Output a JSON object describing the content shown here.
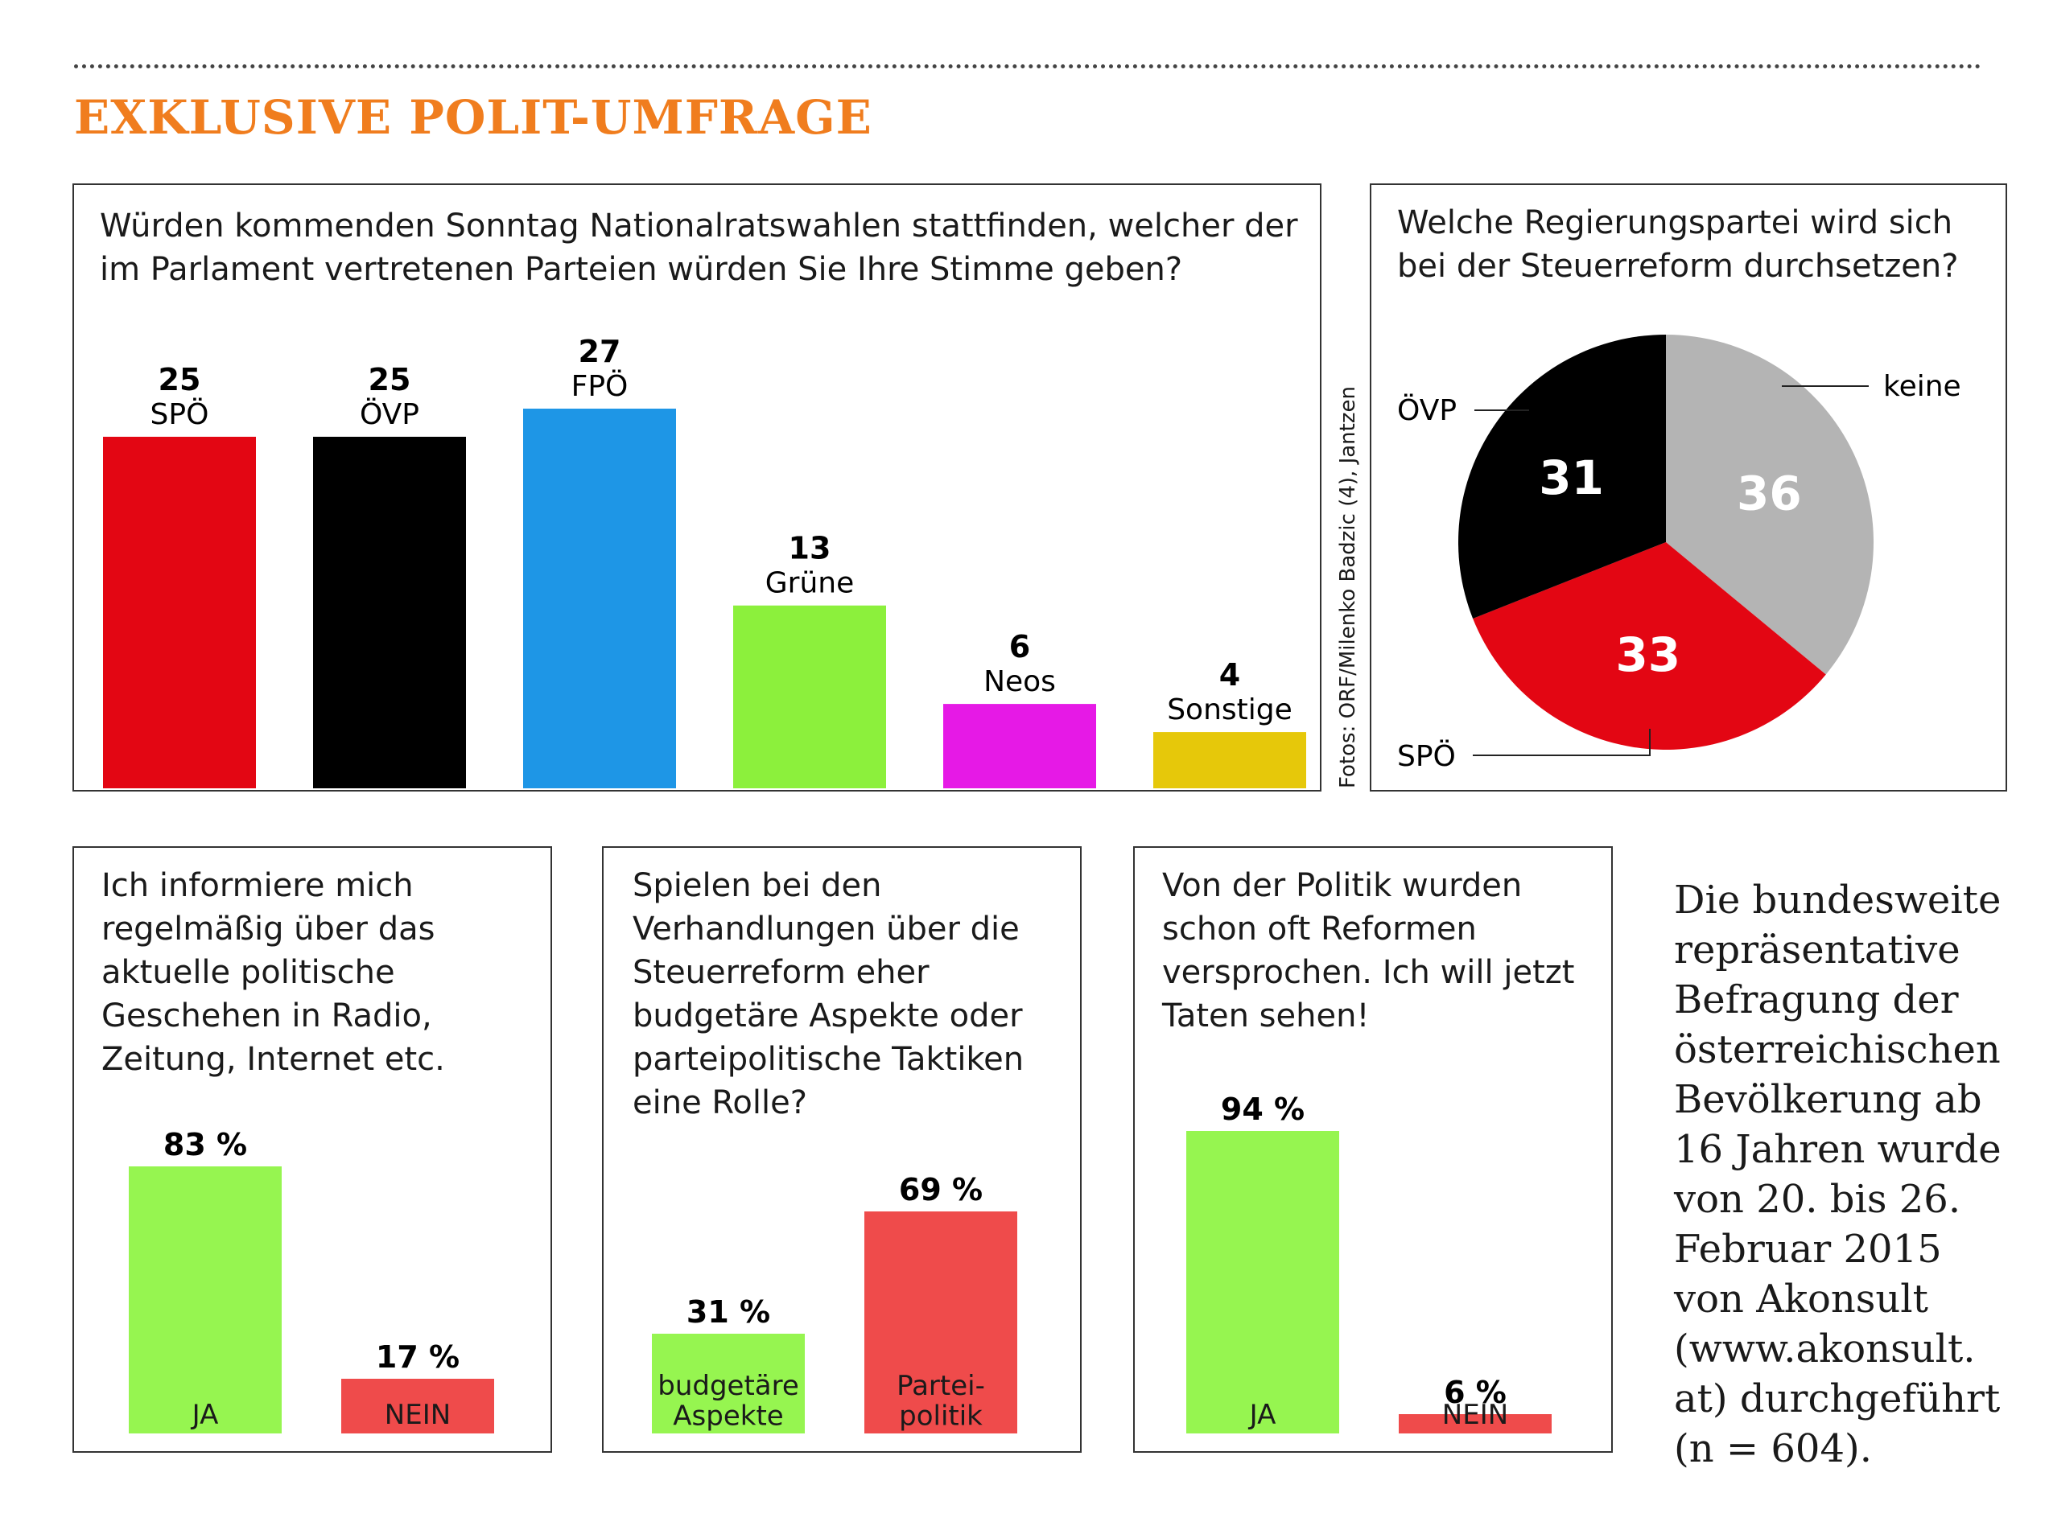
{
  "headline": "EXKLUSIVE POLIT-UMFRAGE",
  "photo_credit": "Fotos: ORF/Milenko Badzic (4), Jantzen",
  "footnote": "Die bundesweite\nrepräsentative\nBefragung der\nösterreichischen\nBevölkerung ab\n16 Jahren wurde\nvon 20. bis 26.\nFebruar 2015\nvon Akonsult\n(www.akonsult.\nat) durchgeführt\n(n = 604).",
  "colors": {
    "accent": "#f07d1e",
    "spo": "#e30613",
    "ovp": "#000000",
    "fpo": "#1e96e6",
    "gruene": "#8cf03c",
    "neos": "#e619e6",
    "sonstige": "#e6c80a",
    "keine": "#b4b4b4",
    "ja": "#96f550",
    "nein": "#ef4b4b"
  },
  "chart_data": [
    {
      "type": "bar",
      "title": "Würden kommenden Sonntag Nationalratswahlen stattfinden, welcher der im Parlament vertretenen Parteien würden Sie Ihre Stimme geben?",
      "categories": [
        "SPÖ",
        "ÖVP",
        "FPÖ",
        "Grüne",
        "Neos",
        "Sonstige"
      ],
      "values": [
        25,
        25,
        27,
        13,
        6,
        4
      ],
      "value_labels": [
        "25",
        "25",
        "27",
        "13",
        "6",
        "4"
      ],
      "colors": [
        "#e30613",
        "#000000",
        "#1e96e6",
        "#8cf03c",
        "#e619e6",
        "#e6c80a"
      ],
      "ylim": [
        0,
        27
      ]
    },
    {
      "type": "pie",
      "title": "Welche Regierungspartei wird sich bei der Steuerreform durchsetzen?",
      "labels": [
        "keine",
        "SPÖ",
        "ÖVP"
      ],
      "values": [
        36,
        33,
        31
      ],
      "value_labels": [
        "36",
        "33",
        "31"
      ],
      "colors": [
        "#b4b4b4",
        "#e30613",
        "#000000"
      ]
    },
    {
      "type": "bar",
      "title": "Ich informiere mich regelmäßig über das aktuelle politische Geschehen in Radio, Zeitung, Internet etc.",
      "categories": [
        "JA",
        "NEIN"
      ],
      "values": [
        83,
        17
      ],
      "value_labels": [
        "83 %",
        "17 %"
      ],
      "colors": [
        "#96f550",
        "#ef4b4b"
      ],
      "ylim": [
        0,
        100
      ]
    },
    {
      "type": "bar",
      "title": "Spielen bei den Verhandlungen über die Steuerreform eher budgetäre Aspekte oder parteipolitische Taktiken eine Rolle?",
      "categories": [
        "budgetäre\nAspekte",
        "Partei-\npolitik"
      ],
      "values": [
        31,
        69
      ],
      "value_labels": [
        "31 %",
        "69 %"
      ],
      "colors": [
        "#96f550",
        "#ef4b4b"
      ],
      "ylim": [
        0,
        100
      ]
    },
    {
      "type": "bar",
      "title": "Von der Politik wurden schon oft Reformen versprochen. Ich will jetzt Taten sehen!",
      "categories": [
        "JA",
        "NEIN"
      ],
      "values": [
        94,
        6
      ],
      "value_labels": [
        "94 %",
        "6 %"
      ],
      "colors": [
        "#96f550",
        "#ef4b4b"
      ],
      "ylim": [
        0,
        100
      ]
    }
  ]
}
